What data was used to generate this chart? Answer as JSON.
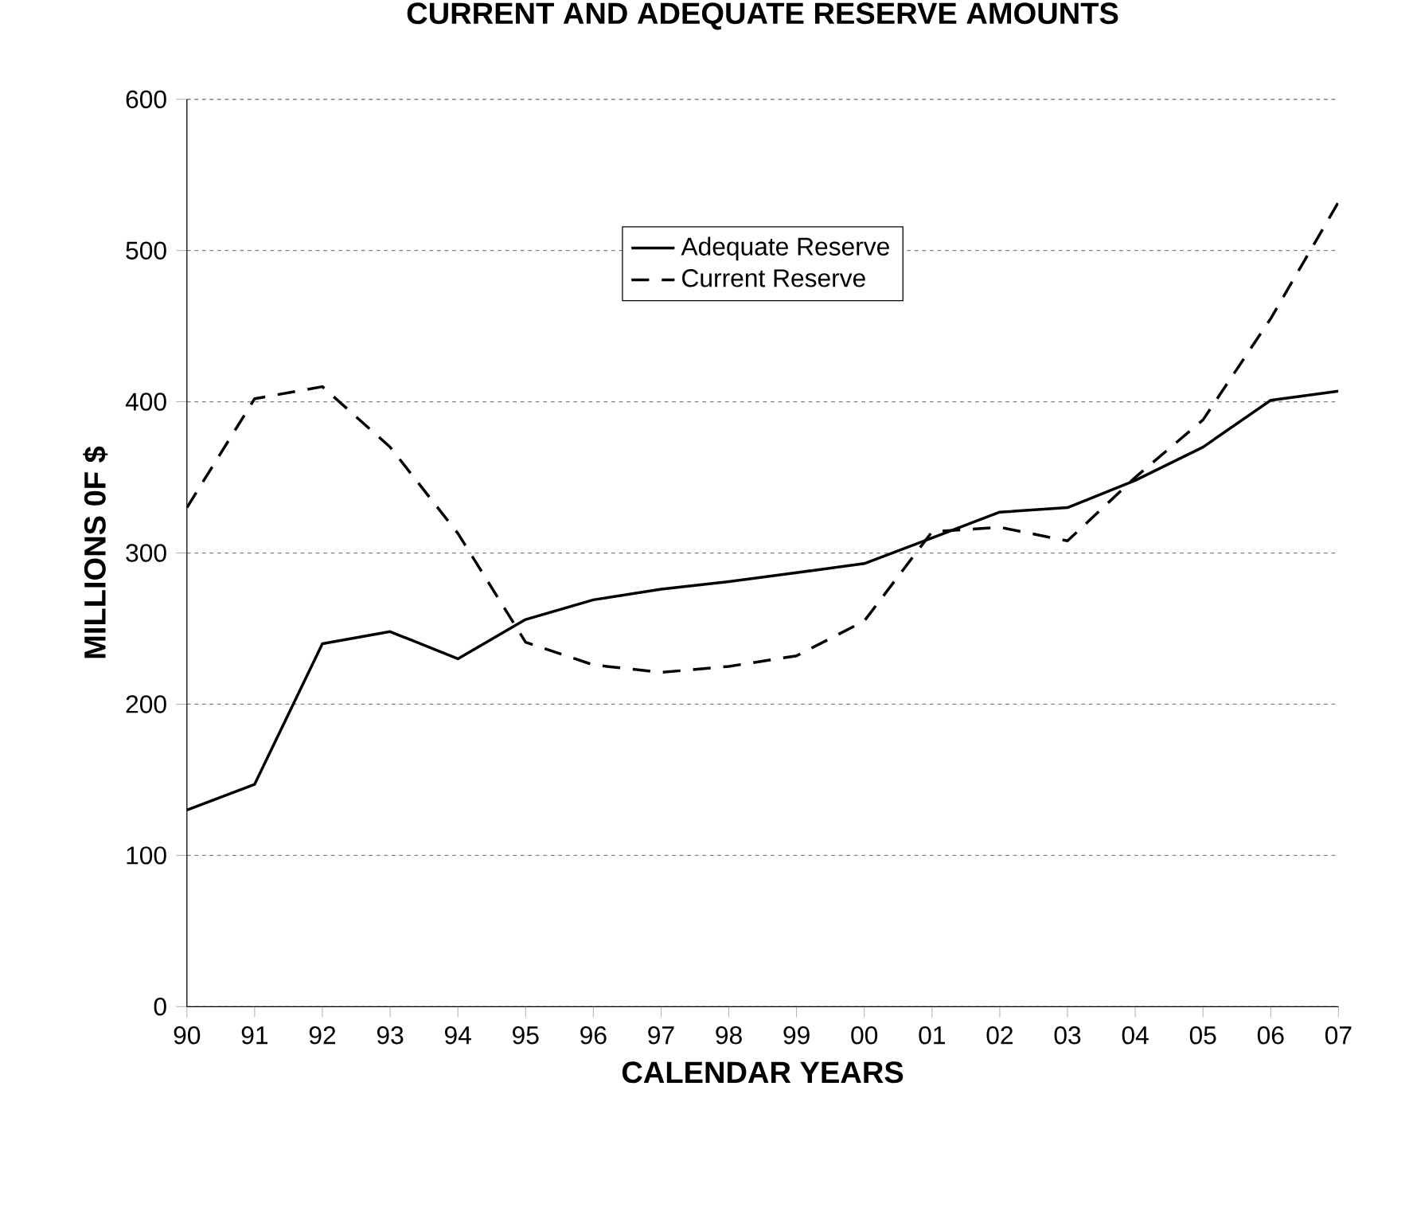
{
  "chart_data": {
    "type": "line",
    "title": "CURRENT AND ADEQUATE RESERVE AMOUNTS",
    "xlabel": "CALENDAR YEARS",
    "ylabel": "MILLIONS 0F $",
    "categories": [
      "90",
      "91",
      "92",
      "93",
      "94",
      "95",
      "96",
      "97",
      "98",
      "99",
      "00",
      "01",
      "02",
      "03",
      "04",
      "05",
      "06",
      "07"
    ],
    "series": [
      {
        "name": "Adequate Reserve",
        "color": "#000000",
        "line_style": "solid",
        "values": [
          130,
          147,
          240,
          248,
          230,
          256,
          269,
          276,
          281,
          287,
          293,
          310,
          327,
          330,
          348,
          370,
          401,
          407
        ]
      },
      {
        "name": "Current Reserve",
        "color": "#000000",
        "line_style": "dashed",
        "values": [
          330,
          402,
          410,
          370,
          313,
          241,
          226,
          221,
          225,
          232,
          255,
          314,
          317,
          308,
          350,
          388,
          455,
          532
        ]
      }
    ],
    "ylim": [
      0,
      600
    ],
    "yticks": [
      0,
      100,
      200,
      300,
      400,
      500,
      600
    ],
    "grid": "y",
    "legend": "top",
    "marker": "none"
  }
}
